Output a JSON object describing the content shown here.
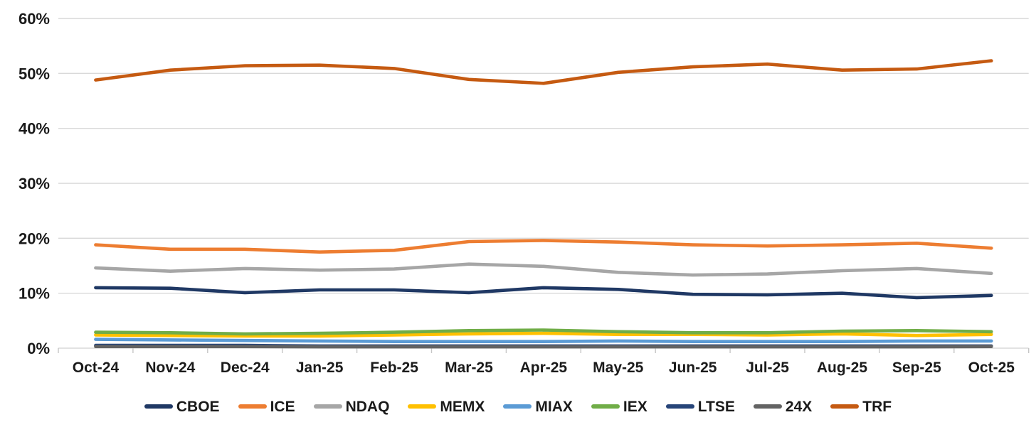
{
  "chart_data": {
    "type": "line",
    "categories": [
      "Oct-24",
      "Nov-24",
      "Dec-24",
      "Jan-25",
      "Feb-25",
      "Mar-25",
      "Apr-25",
      "May-25",
      "Jun-25",
      "Jul-25",
      "Aug-25",
      "Sep-25",
      "Oct-25"
    ],
    "series": [
      {
        "name": "CBOE",
        "color": "#1F3864",
        "values": [
          11.0,
          10.9,
          10.1,
          10.6,
          10.6,
          10.1,
          11.0,
          10.7,
          9.8,
          9.7,
          10.0,
          9.2,
          9.6
        ]
      },
      {
        "name": "ICE",
        "color": "#ED7D31",
        "values": [
          18.8,
          18.0,
          18.0,
          17.5,
          17.8,
          19.4,
          19.6,
          19.3,
          18.8,
          18.6,
          18.8,
          19.1,
          18.2
        ]
      },
      {
        "name": "NDAQ",
        "color": "#A6A6A6",
        "values": [
          14.6,
          14.0,
          14.5,
          14.2,
          14.4,
          15.3,
          14.9,
          13.8,
          13.3,
          13.5,
          14.1,
          14.5,
          13.6
        ]
      },
      {
        "name": "MEMX",
        "color": "#FFC000",
        "values": [
          2.4,
          2.3,
          2.2,
          2.2,
          2.4,
          2.6,
          2.7,
          2.5,
          2.5,
          2.4,
          2.6,
          2.3,
          2.5
        ]
      },
      {
        "name": "MIAX",
        "color": "#5B9BD5",
        "values": [
          1.6,
          1.5,
          1.4,
          1.3,
          1.2,
          1.2,
          1.2,
          1.3,
          1.2,
          1.2,
          1.2,
          1.3,
          1.3
        ]
      },
      {
        "name": "IEX",
        "color": "#70AD47",
        "values": [
          2.9,
          2.8,
          2.6,
          2.7,
          2.9,
          3.2,
          3.3,
          3.0,
          2.8,
          2.8,
          3.1,
          3.2,
          3.0
        ]
      },
      {
        "name": "LTSE",
        "color": "#264478",
        "values": [
          0.5,
          0.5,
          0.5,
          0.4,
          0.4,
          0.4,
          0.4,
          0.4,
          0.4,
          0.4,
          0.4,
          0.4,
          0.4
        ]
      },
      {
        "name": "24X",
        "color": "#636363",
        "values": [
          0.3,
          0.3,
          0.3,
          0.25,
          0.25,
          0.25,
          0.25,
          0.25,
          0.25,
          0.25,
          0.25,
          0.25,
          0.3
        ]
      },
      {
        "name": "TRF",
        "color": "#C55A11",
        "values": [
          48.8,
          50.6,
          51.4,
          51.5,
          50.9,
          48.9,
          48.2,
          50.2,
          51.2,
          51.7,
          50.6,
          50.8,
          52.3
        ]
      }
    ],
    "ylim": [
      0,
      60
    ],
    "ytick_step": 10,
    "ytick_labels": [
      "0%",
      "10%",
      "20%",
      "30%",
      "40%",
      "50%",
      "60%"
    ],
    "grid": true,
    "legend_position": "bottom"
  },
  "style": {
    "gridline_color": "#D9D9D9",
    "axis_color": "#C6C6C6",
    "text_color": "#1a1a1a",
    "background": "#FFFFFF"
  }
}
